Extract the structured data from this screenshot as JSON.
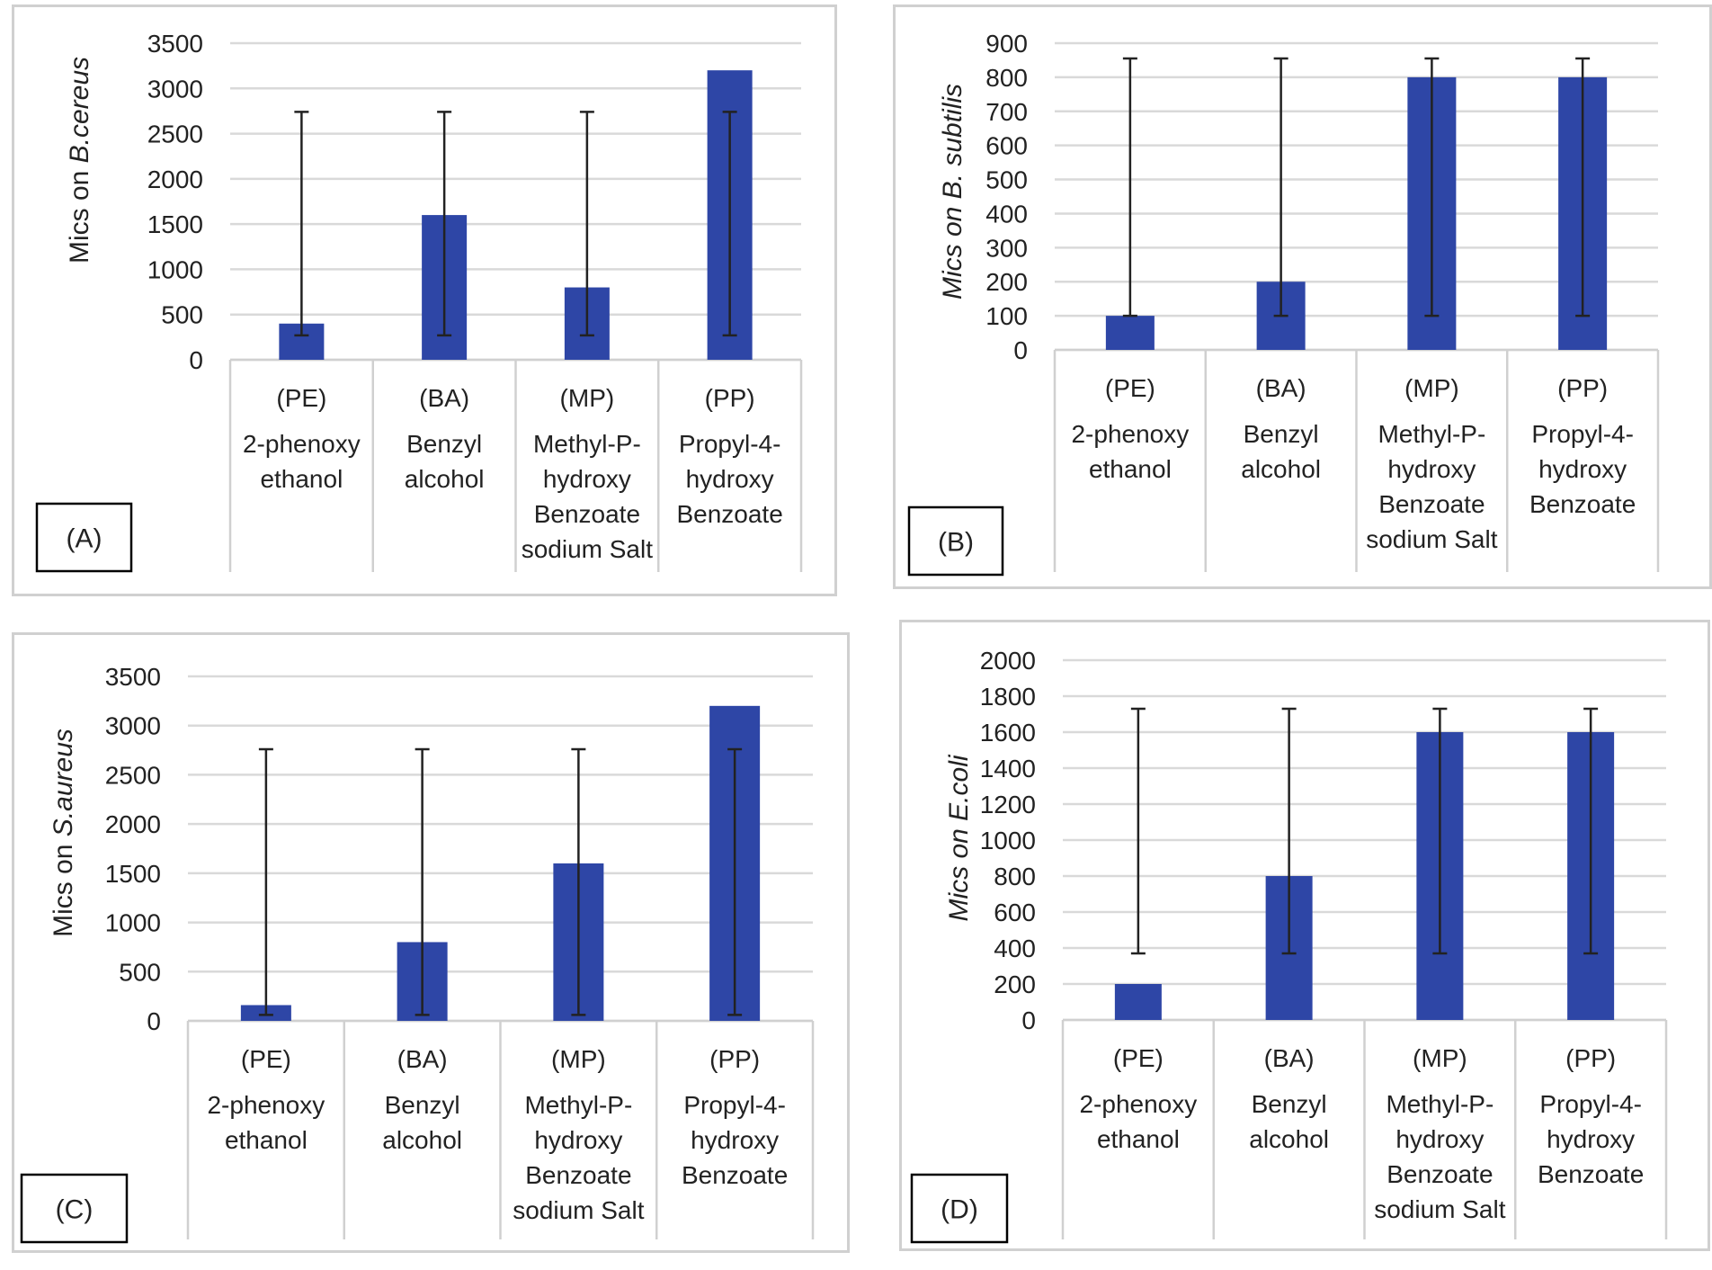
{
  "chart_data": [
    {
      "type": "bar",
      "panel_label": "(A)",
      "ylabel": "Mics on ",
      "ylabel_italic": "B.cereus",
      "ylabel_style": "prefix-normal",
      "categories": [
        [
          "(PE)",
          "2-phenoxy",
          "ethanol"
        ],
        [
          "(BA)",
          "Benzyl",
          "alcohol"
        ],
        [
          "(MP)",
          "Methyl-P-",
          "hydroxy",
          "Benzoate",
          "sodium Salt"
        ],
        [
          "(PP)",
          "Propyl-4-",
          "hydroxy",
          "Benzoate"
        ]
      ],
      "values": [
        400,
        1600,
        800,
        3200
      ],
      "error_bar": {
        "low": 270,
        "high": 2740
      },
      "ylim": [
        0,
        3500
      ],
      "yticks": [
        0,
        500,
        1000,
        1500,
        2000,
        2500,
        3000,
        3500
      ],
      "grid": true,
      "bar_color": "#2e46a6"
    },
    {
      "type": "bar",
      "panel_label": "(B)",
      "ylabel": "Mics on B. subtilis",
      "ylabel_italic": "",
      "ylabel_style": "all-italic",
      "categories": [
        [
          "(PE)",
          "2-phenoxy",
          "ethanol"
        ],
        [
          "(BA)",
          "Benzyl",
          "alcohol"
        ],
        [
          "(MP)",
          "Methyl-P-",
          "hydroxy",
          "Benzoate",
          "sodium Salt"
        ],
        [
          "(PP)",
          "Propyl-4-",
          "hydroxy",
          "Benzoate"
        ]
      ],
      "values": [
        100,
        200,
        800,
        800
      ],
      "error_bar": {
        "low": 100,
        "high": 855
      },
      "ylim": [
        0,
        900
      ],
      "yticks": [
        0,
        100,
        200,
        300,
        400,
        500,
        600,
        700,
        800,
        900
      ],
      "grid": true,
      "bar_color": "#2e46a6"
    },
    {
      "type": "bar",
      "panel_label": "(C)",
      "ylabel": "Mics on ",
      "ylabel_italic": "S.aureus",
      "ylabel_style": "prefix-normal",
      "categories": [
        [
          "(PE)",
          "2-phenoxy",
          "ethanol"
        ],
        [
          "(BA)",
          "Benzyl",
          "alcohol"
        ],
        [
          "(MP)",
          "Methyl-P-",
          "hydroxy",
          "Benzoate",
          "sodium Salt"
        ],
        [
          "(PP)",
          "Propyl-4-",
          "hydroxy",
          "Benzoate"
        ]
      ],
      "values": [
        160,
        800,
        1600,
        3200
      ],
      "error_bar": {
        "low": 60,
        "high": 2760
      },
      "ylim": [
        0,
        3500
      ],
      "yticks": [
        0,
        500,
        1000,
        1500,
        2000,
        2500,
        3000,
        3500
      ],
      "grid": true,
      "bar_color": "#2e46a6"
    },
    {
      "type": "bar",
      "panel_label": "(D)",
      "ylabel": "Mics on E.coli",
      "ylabel_italic": "",
      "ylabel_style": "all-italic",
      "categories": [
        [
          "(PE)",
          "2-phenoxy",
          "ethanol"
        ],
        [
          "(BA)",
          "Benzyl",
          "alcohol"
        ],
        [
          "(MP)",
          "Methyl-P-",
          "hydroxy",
          "Benzoate",
          "sodium Salt"
        ],
        [
          "(PP)",
          "Propyl-4-",
          "hydroxy",
          "Benzoate"
        ]
      ],
      "values": [
        200,
        800,
        1600,
        1600
      ],
      "error_bar": {
        "low": 370,
        "high": 1730
      },
      "ylim": [
        0,
        2000
      ],
      "yticks": [
        0,
        200,
        400,
        600,
        800,
        1000,
        1200,
        1400,
        1600,
        1800,
        2000
      ],
      "grid": true,
      "bar_color": "#2e46a6"
    }
  ]
}
